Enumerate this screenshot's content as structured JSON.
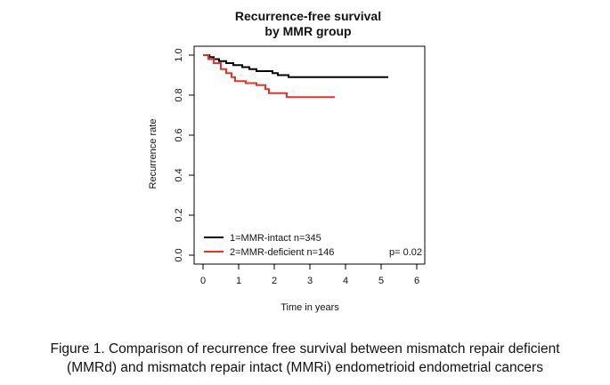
{
  "chart_data": {
    "type": "line",
    "title_lines": [
      "Recurrence-free survival",
      "by MMR group"
    ],
    "xlabel": "Time in years",
    "ylabel": "Recurrence rate",
    "xlim": [
      0,
      6
    ],
    "ylim": [
      0,
      1
    ],
    "x_ticks": [
      "0",
      "1",
      "2",
      "3",
      "4",
      "5",
      "6"
    ],
    "y_ticks": [
      "0.0",
      "0.2",
      "0.4",
      "0.6",
      "0.8",
      "1.0"
    ],
    "grid": false,
    "legend_position": "bottom-left",
    "series": [
      {
        "name": "1=MMR-intact n=345",
        "color": "#000000",
        "steps": [
          [
            0,
            1.0
          ],
          [
            0.18,
            0.99
          ],
          [
            0.3,
            0.98
          ],
          [
            0.45,
            0.97
          ],
          [
            0.65,
            0.96
          ],
          [
            0.85,
            0.95
          ],
          [
            1.1,
            0.94
          ],
          [
            1.3,
            0.93
          ],
          [
            1.5,
            0.92
          ],
          [
            1.95,
            0.91
          ],
          [
            2.1,
            0.9
          ],
          [
            2.4,
            0.89
          ],
          [
            5.2,
            0.89
          ]
        ]
      },
      {
        "name": "2=MMR-deficient n=146",
        "color": "#e8312a",
        "steps": [
          [
            0,
            1.0
          ],
          [
            0.15,
            0.98
          ],
          [
            0.3,
            0.96
          ],
          [
            0.5,
            0.93
          ],
          [
            0.65,
            0.91
          ],
          [
            0.8,
            0.89
          ],
          [
            0.9,
            0.87
          ],
          [
            1.2,
            0.86
          ],
          [
            1.5,
            0.85
          ],
          [
            1.75,
            0.83
          ],
          [
            1.85,
            0.81
          ],
          [
            2.35,
            0.79
          ],
          [
            3.7,
            0.79
          ]
        ]
      }
    ],
    "annotation": "p= 0.02"
  },
  "caption": {
    "line1": "Figure 1. Comparison of recurrence free survival between mismatch repair deficient",
    "line2": "(MMRd) and mismatch repair intact (MMRi) endometrioid endometrial cancers"
  }
}
